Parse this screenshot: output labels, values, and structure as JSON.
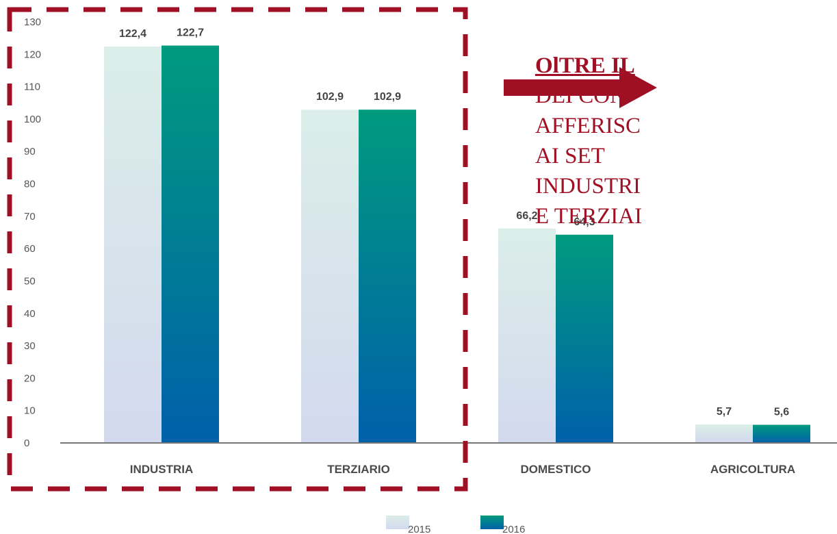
{
  "chart_data": {
    "type": "bar",
    "categories": [
      "INDUSTRIA",
      "TERZIARIO",
      "DOMESTICO",
      "AGRICOLTURA"
    ],
    "series": [
      {
        "name": "2015",
        "values": [
          122.4,
          102.9,
          66.2,
          5.7
        ],
        "labels": [
          "122,4",
          "102,9",
          "66,2",
          "5,7"
        ]
      },
      {
        "name": "2016",
        "values": [
          122.7,
          102.9,
          64.3,
          5.6
        ],
        "labels": [
          "122,7",
          "102,9",
          "64,3",
          "5,6"
        ]
      }
    ],
    "ylim": [
      0,
      130
    ],
    "yticks": [
      0,
      10,
      20,
      30,
      40,
      50,
      60,
      70,
      80,
      90,
      100,
      110,
      120,
      130
    ],
    "legend": "bottom",
    "colors": {
      "2015_top": "#dbeee9",
      "2015_bottom": "#d3d9ee",
      "2016_top": "#009a7e",
      "2016_bottom": "#0060aa",
      "highlight": "#a01024",
      "axis": "#777777"
    }
  },
  "annotation": {
    "lines": [
      "OlTRE  IL",
      "DEI  CON",
      "AFFERISC",
      "AI      SET",
      "INDUSTRI",
      "E TERZIAI"
    ]
  }
}
